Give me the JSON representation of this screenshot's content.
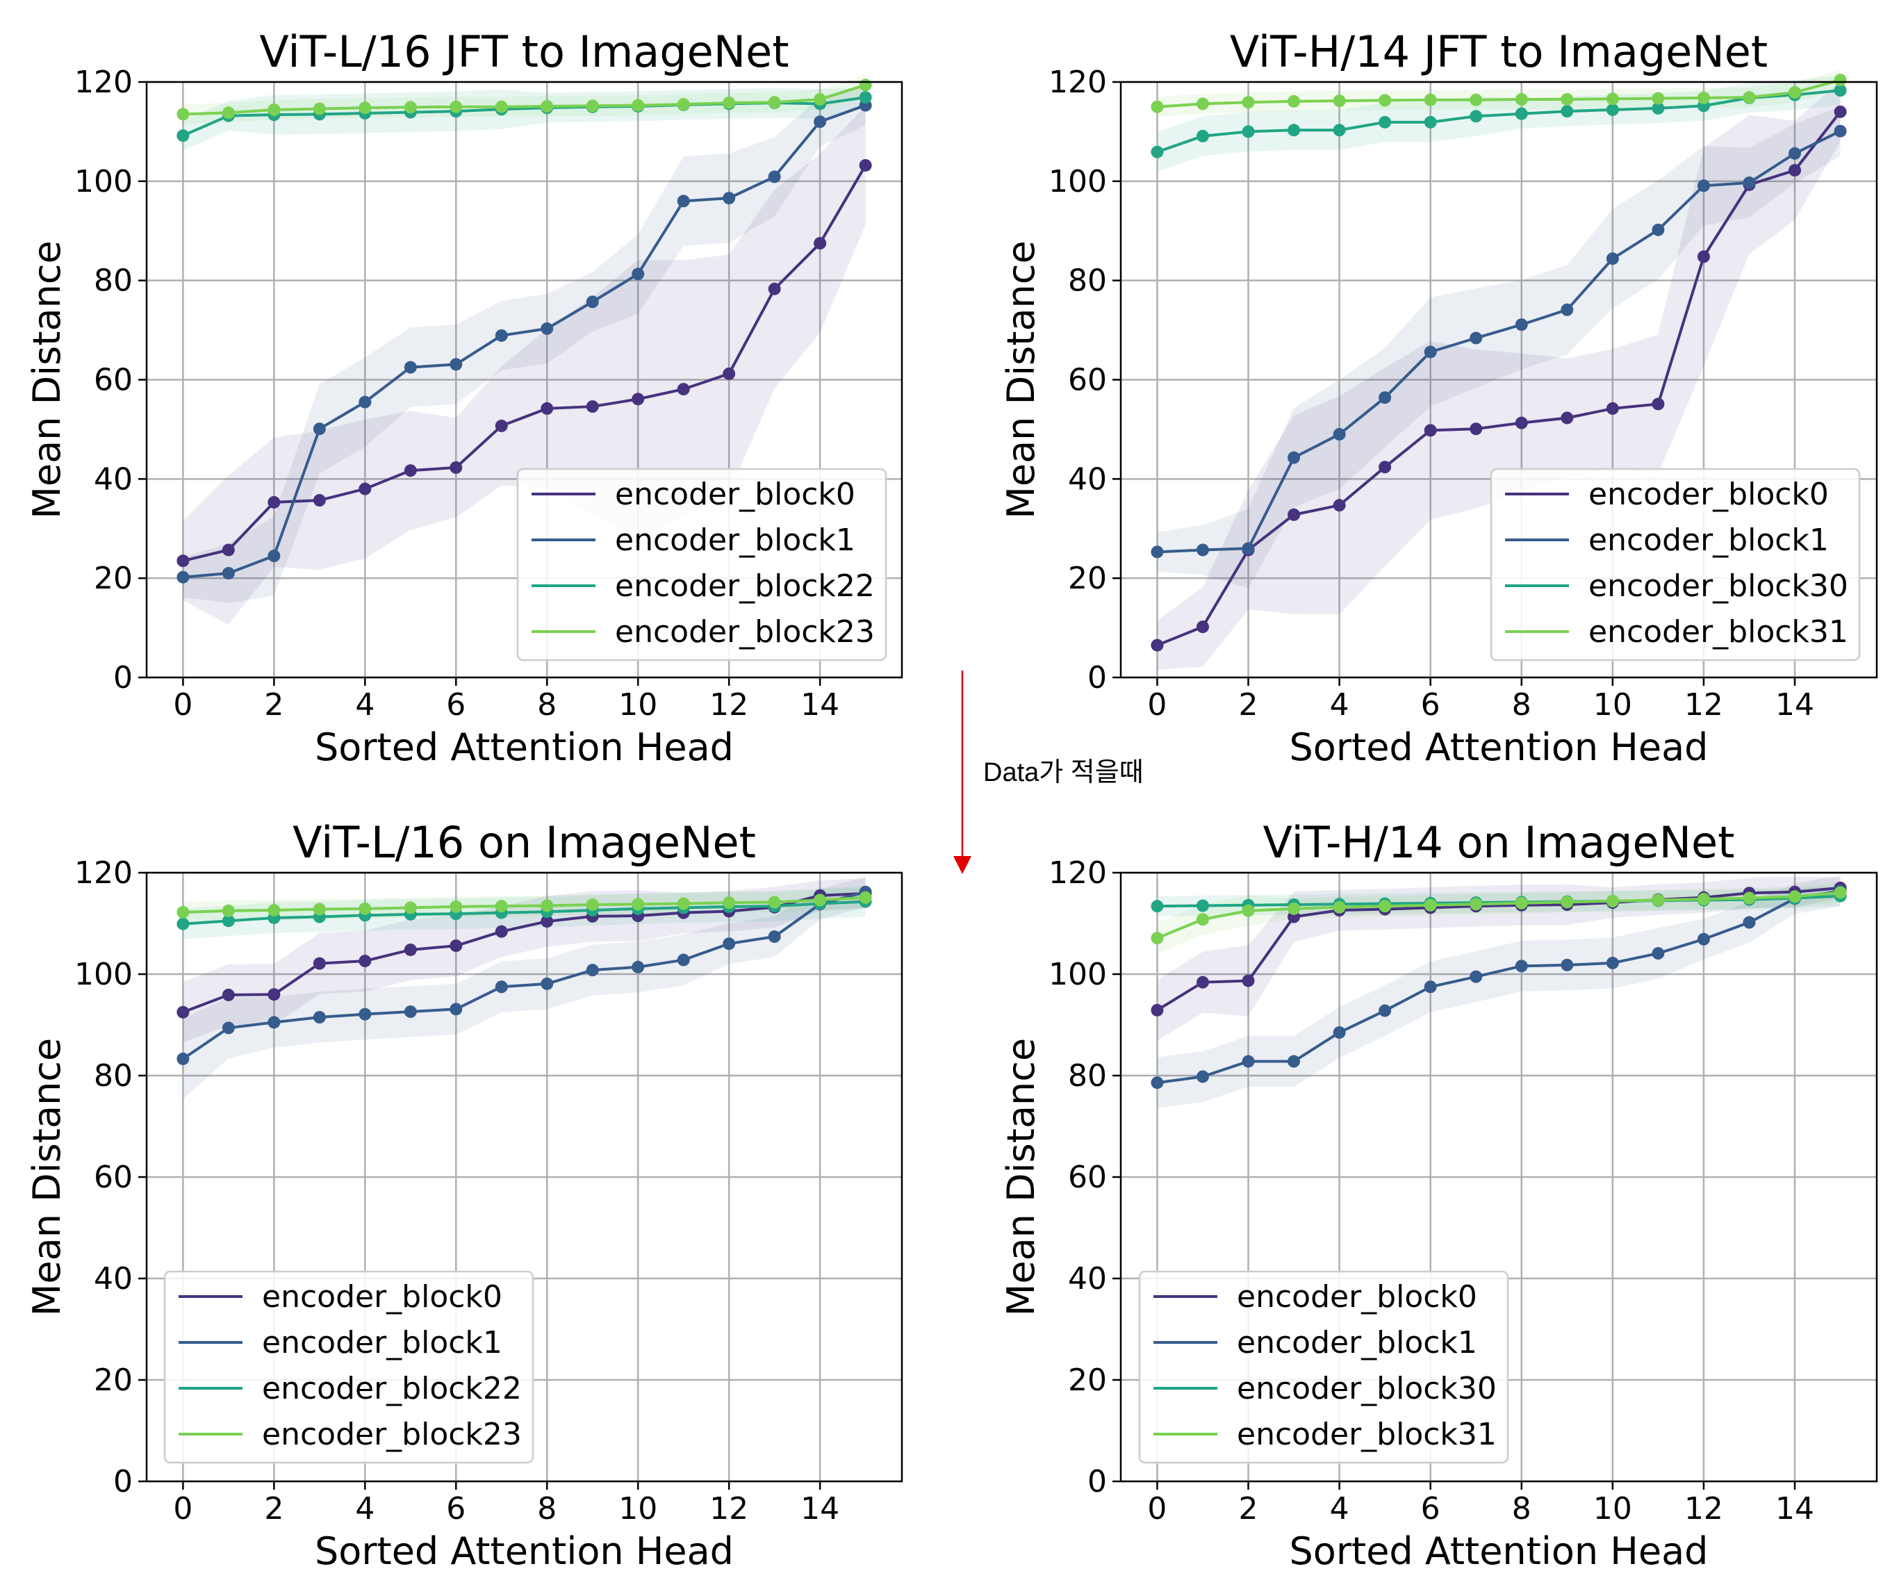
{
  "annotation": {
    "text": "Data가 적을때",
    "color": "#e00000"
  },
  "palette": {
    "block_a": "#46327e",
    "block_b": "#365c8d",
    "block_c": "#21a585",
    "block_d": "#7ad151"
  },
  "chart_data": [
    {
      "type": "line",
      "title": "ViT-L/16 JFT to ImageNet",
      "xlabel": "Sorted Attention Head",
      "ylabel": "Mean Distance",
      "xlim": [
        -0.8,
        15.8
      ],
      "ylim": [
        0,
        120
      ],
      "xticks": [
        0,
        2,
        4,
        6,
        8,
        10,
        12,
        14
      ],
      "yticks": [
        0,
        20,
        40,
        60,
        80,
        100,
        120
      ],
      "grid": true,
      "legend_position": "lower-right",
      "x": [
        0,
        1,
        2,
        3,
        4,
        5,
        6,
        7,
        8,
        9,
        10,
        11,
        12,
        13,
        14,
        15
      ],
      "series": [
        {
          "name": "encoder_block0",
          "values": [
            23.5,
            25.7,
            35.3,
            35.7,
            38.0,
            41.7,
            42.3,
            50.7,
            54.2,
            54.6,
            56.1,
            58.1,
            61.2,
            78.3,
            87.5,
            103.2
          ],
          "band": [
            8,
            15,
            13,
            14,
            14,
            12,
            10,
            12,
            16,
            22,
            28,
            26,
            24,
            20,
            18,
            12
          ],
          "color_key": "block_a"
        },
        {
          "name": "encoder_block1",
          "values": [
            20.2,
            21.0,
            24.5,
            50.1,
            55.5,
            62.5,
            63.1,
            68.9,
            70.3,
            75.7,
            81.3,
            96.0,
            96.6,
            100.9,
            112.0,
            115.3
          ],
          "band": [
            4,
            6,
            8,
            9,
            9,
            8,
            8,
            7,
            7,
            6,
            8,
            9,
            9,
            8,
            5,
            4
          ],
          "color_key": "block_b"
        },
        {
          "name": "encoder_block22",
          "values": [
            109.2,
            113.2,
            113.4,
            113.5,
            113.7,
            113.9,
            114.1,
            114.5,
            114.8,
            115.0,
            115.1,
            115.4,
            115.6,
            115.8,
            115.6,
            116.9
          ],
          "band": [
            3,
            3,
            4,
            4,
            4,
            4,
            4,
            4,
            3,
            3,
            3,
            3,
            3,
            3,
            3,
            2
          ],
          "color_key": "block_c"
        },
        {
          "name": "encoder_block23",
          "values": [
            113.5,
            113.8,
            114.4,
            114.6,
            114.8,
            114.9,
            115.0,
            115.0,
            115.1,
            115.2,
            115.3,
            115.5,
            115.8,
            115.9,
            116.5,
            119.4
          ],
          "band": [
            2,
            2,
            2,
            2,
            2,
            2,
            2,
            2,
            2,
            2,
            2,
            2,
            2,
            2,
            2,
            2
          ],
          "color_key": "block_d"
        }
      ]
    },
    {
      "type": "line",
      "title": "ViT-H/14 JFT to ImageNet",
      "xlabel": "Sorted Attention Head",
      "ylabel": "Mean Distance",
      "xlim": [
        -0.8,
        15.8
      ],
      "ylim": [
        0,
        120
      ],
      "xticks": [
        0,
        2,
        4,
        6,
        8,
        10,
        12,
        14
      ],
      "yticks": [
        0,
        20,
        40,
        60,
        80,
        100,
        120
      ],
      "grid": true,
      "legend_position": "lower-right",
      "x": [
        0,
        1,
        2,
        3,
        4,
        5,
        6,
        7,
        8,
        9,
        10,
        11,
        12,
        13,
        14,
        15
      ],
      "series": [
        {
          "name": "encoder_block0",
          "values": [
            6.5,
            10.2,
            25.7,
            32.8,
            34.7,
            42.4,
            49.8,
            50.1,
            51.3,
            52.3,
            54.2,
            55.1,
            84.8,
            99.3,
            102.2,
            114.0
          ],
          "band": [
            5,
            8,
            12,
            20,
            22,
            20,
            18,
            16,
            14,
            12,
            12,
            14,
            22,
            14,
            10,
            6
          ],
          "color_key": "block_a"
        },
        {
          "name": "encoder_block1",
          "values": [
            25.3,
            25.7,
            26.0,
            44.3,
            49.0,
            56.4,
            65.6,
            68.4,
            71.1,
            74.1,
            84.4,
            90.2,
            99.1,
            99.7,
            105.6,
            110.1
          ],
          "band": [
            4,
            5,
            8,
            10,
            11,
            10,
            11,
            10,
            9,
            9,
            10,
            10,
            8,
            7,
            6,
            5
          ],
          "color_key": "block_b"
        },
        {
          "name": "encoder_block30",
          "values": [
            105.9,
            109.1,
            110.0,
            110.3,
            110.3,
            111.9,
            111.9,
            113.1,
            113.6,
            114.1,
            114.4,
            114.7,
            115.2,
            116.8,
            117.4,
            118.3
          ],
          "band": [
            4,
            4,
            4,
            4,
            4,
            4,
            4,
            4,
            3,
            3,
            3,
            3,
            3,
            3,
            3,
            3
          ],
          "color_key": "block_c"
        },
        {
          "name": "encoder_block31",
          "values": [
            115.0,
            115.6,
            115.9,
            116.1,
            116.2,
            116.3,
            116.4,
            116.4,
            116.5,
            116.5,
            116.6,
            116.7,
            116.8,
            116.9,
            117.9,
            120.4
          ],
          "band": [
            2,
            2,
            2,
            2,
            2,
            2,
            2,
            2,
            2,
            2,
            2,
            2,
            2,
            2,
            2,
            2
          ],
          "color_key": "block_d"
        }
      ]
    },
    {
      "type": "line",
      "title": "ViT-L/16 on ImageNet",
      "xlabel": "Sorted Attention Head",
      "ylabel": "Mean Distance",
      "xlim": [
        -0.8,
        15.8
      ],
      "ylim": [
        0,
        120
      ],
      "xticks": [
        0,
        2,
        4,
        6,
        8,
        10,
        12,
        14
      ],
      "yticks": [
        0,
        20,
        40,
        60,
        80,
        100,
        120
      ],
      "grid": true,
      "legend_position": "lower-left",
      "x": [
        0,
        1,
        2,
        3,
        4,
        5,
        6,
        7,
        8,
        9,
        10,
        11,
        12,
        13,
        14,
        15
      ],
      "series": [
        {
          "name": "encoder_block0",
          "values": [
            92.5,
            95.9,
            96.0,
            102.1,
            102.6,
            104.8,
            105.6,
            108.4,
            110.4,
            111.4,
            111.5,
            112.1,
            112.4,
            113.2,
            115.5,
            115.9
          ],
          "band": [
            6,
            6,
            6,
            6,
            6,
            6,
            6,
            5,
            5,
            5,
            5,
            4,
            4,
            4,
            3,
            3
          ],
          "color_key": "block_a"
        },
        {
          "name": "encoder_block1",
          "values": [
            83.3,
            89.4,
            90.5,
            91.5,
            92.1,
            92.6,
            93.1,
            97.5,
            98.1,
            100.8,
            101.4,
            102.8,
            106.0,
            107.4,
            113.8,
            116.2
          ],
          "band": [
            8,
            6,
            5,
            5,
            5,
            5,
            5,
            5,
            5,
            5,
            5,
            5,
            4,
            4,
            3,
            3
          ],
          "color_key": "block_b"
        },
        {
          "name": "encoder_block22",
          "values": [
            109.9,
            110.5,
            111.1,
            111.3,
            111.6,
            111.8,
            111.9,
            112.1,
            112.3,
            112.6,
            112.9,
            113.1,
            113.3,
            113.4,
            113.9,
            114.3
          ],
          "band": [
            3,
            3,
            3,
            3,
            3,
            3,
            3,
            3,
            3,
            3,
            3,
            3,
            3,
            3,
            3,
            3
          ],
          "color_key": "block_c"
        },
        {
          "name": "encoder_block23",
          "values": [
            112.2,
            112.5,
            112.6,
            112.8,
            112.9,
            113.1,
            113.3,
            113.4,
            113.5,
            113.7,
            113.8,
            113.9,
            114.1,
            114.2,
            114.6,
            115.1
          ],
          "band": [
            2,
            2,
            2,
            2,
            2,
            2,
            2,
            2,
            2,
            2,
            2,
            2,
            2,
            2,
            2,
            2
          ],
          "color_key": "block_d"
        }
      ]
    },
    {
      "type": "line",
      "title": "ViT-H/14 on ImageNet",
      "xlabel": "Sorted Attention Head",
      "ylabel": "Mean Distance",
      "xlim": [
        -0.8,
        15.8
      ],
      "ylim": [
        0,
        120
      ],
      "xticks": [
        0,
        2,
        4,
        6,
        8,
        10,
        12,
        14
      ],
      "yticks": [
        0,
        20,
        40,
        60,
        80,
        100,
        120
      ],
      "grid": true,
      "legend_position": "lower-left",
      "x": [
        0,
        1,
        2,
        3,
        4,
        5,
        6,
        7,
        8,
        9,
        10,
        11,
        12,
        13,
        14,
        15
      ],
      "series": [
        {
          "name": "encoder_block0",
          "values": [
            92.9,
            98.4,
            98.7,
            111.3,
            112.6,
            112.8,
            113.1,
            113.4,
            113.6,
            113.7,
            114.1,
            114.7,
            115.1,
            116.0,
            116.2,
            117.0
          ],
          "band": [
            6,
            6,
            7,
            5,
            4,
            4,
            4,
            4,
            4,
            4,
            3,
            3,
            3,
            3,
            3,
            2
          ],
          "color_key": "block_a"
        },
        {
          "name": "encoder_block1",
          "values": [
            78.6,
            79.8,
            82.8,
            82.8,
            88.5,
            92.8,
            97.5,
            99.5,
            101.6,
            101.8,
            102.2,
            104.1,
            106.9,
            110.2,
            114.9,
            116.4
          ],
          "band": [
            5,
            5,
            5,
            5,
            5,
            5,
            5,
            5,
            5,
            5,
            5,
            5,
            4,
            4,
            3,
            3
          ],
          "color_key": "block_b"
        },
        {
          "name": "encoder_block30",
          "values": [
            113.4,
            113.5,
            113.6,
            113.7,
            113.8,
            113.9,
            114.0,
            114.1,
            114.2,
            114.3,
            114.4,
            114.5,
            114.6,
            114.7,
            115.0,
            115.4
          ],
          "band": [
            2,
            2,
            2,
            2,
            2,
            2,
            2,
            2,
            2,
            2,
            2,
            2,
            2,
            2,
            2,
            2
          ],
          "color_key": "block_c"
        },
        {
          "name": "encoder_block31",
          "values": [
            107.1,
            110.8,
            112.5,
            112.9,
            113.2,
            113.4,
            113.6,
            113.8,
            114.0,
            114.2,
            114.4,
            114.6,
            114.8,
            115.0,
            115.3,
            116.1
          ],
          "band": [
            3,
            3,
            3,
            2,
            2,
            2,
            2,
            2,
            2,
            2,
            2,
            2,
            2,
            2,
            2,
            2
          ],
          "color_key": "block_d"
        }
      ]
    }
  ]
}
